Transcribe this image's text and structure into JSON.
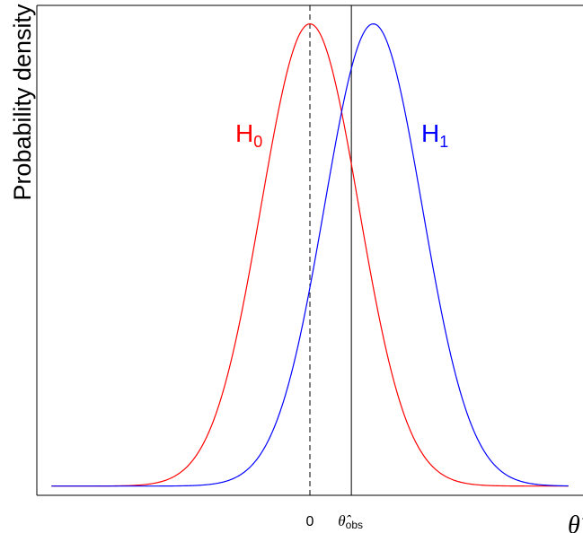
{
  "chart_data": {
    "type": "line",
    "title": "",
    "ylabel": "Probability density",
    "xlabel": "θ̂",
    "x_ticks": [
      {
        "value": 0,
        "label": "0"
      },
      {
        "value": 0.85,
        "label": "θ̂obs",
        "symbol": "θ̂",
        "subscript": "obs"
      }
    ],
    "xlim": [
      -5.6,
      5.6
    ],
    "ylim": [
      -0.02,
      1.04
    ],
    "grid": false,
    "legend": "none (curve labels placed inline)",
    "series": [
      {
        "name": "H0",
        "label_base": "H",
        "label_sub": "0",
        "color": "#ff0000",
        "mean": 0.0,
        "sd": 1.0
      },
      {
        "name": "H1",
        "label_base": "H",
        "label_sub": "1",
        "color": "#0000ff",
        "mean": 1.3,
        "sd": 1.0
      }
    ],
    "reference_lines": [
      {
        "x": 0,
        "style": "dashed",
        "color": "#000000"
      },
      {
        "x": 0.85,
        "style": "solid",
        "color": "#000000"
      }
    ],
    "curve_x_range": [
      -5.3,
      5.3
    ]
  }
}
